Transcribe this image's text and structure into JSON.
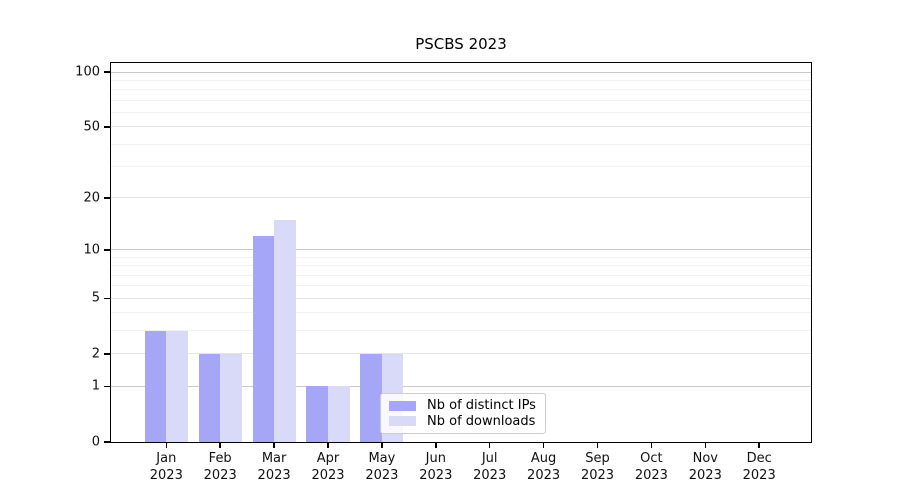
{
  "title": "PSCBS 2023",
  "legend": {
    "items": [
      {
        "label": "Nb of distinct IPs",
        "color": "#a6a6f6"
      },
      {
        "label": "Nb of downloads",
        "color": "#d9d9f8"
      }
    ]
  },
  "chart_data": {
    "type": "bar",
    "title": "PSCBS 2023",
    "categories_line1": [
      "Jan",
      "Feb",
      "Mar",
      "Apr",
      "May",
      "Jun",
      "Jul",
      "Aug",
      "Sep",
      "Oct",
      "Nov",
      "Dec"
    ],
    "categories_line2": "2023",
    "series": [
      {
        "name": "Nb of distinct IPs",
        "color": "#a6a6f6",
        "values": [
          3,
          2,
          12,
          1,
          2,
          0,
          0,
          0,
          0,
          0,
          0,
          0
        ]
      },
      {
        "name": "Nb of downloads",
        "color": "#d9d9f8",
        "values": [
          3,
          2,
          15,
          1,
          2,
          0,
          0,
          0,
          0,
          0,
          0,
          0
        ]
      }
    ],
    "y_scale": "log10(1+x)",
    "y_ticks": [
      0,
      1,
      2,
      5,
      10,
      20,
      50,
      100
    ],
    "ylim": [
      0,
      100
    ],
    "grid": {
      "major_values": [
        1,
        10,
        100
      ],
      "mid_values": [
        2,
        5,
        20,
        50
      ],
      "minor_values": [
        3,
        4,
        6,
        7,
        8,
        9,
        30,
        40,
        60,
        70,
        80,
        90
      ]
    },
    "legend_position": "inside lower middle",
    "legend_entries": [
      "Nb of distinct IPs",
      "Nb of downloads"
    ]
  }
}
